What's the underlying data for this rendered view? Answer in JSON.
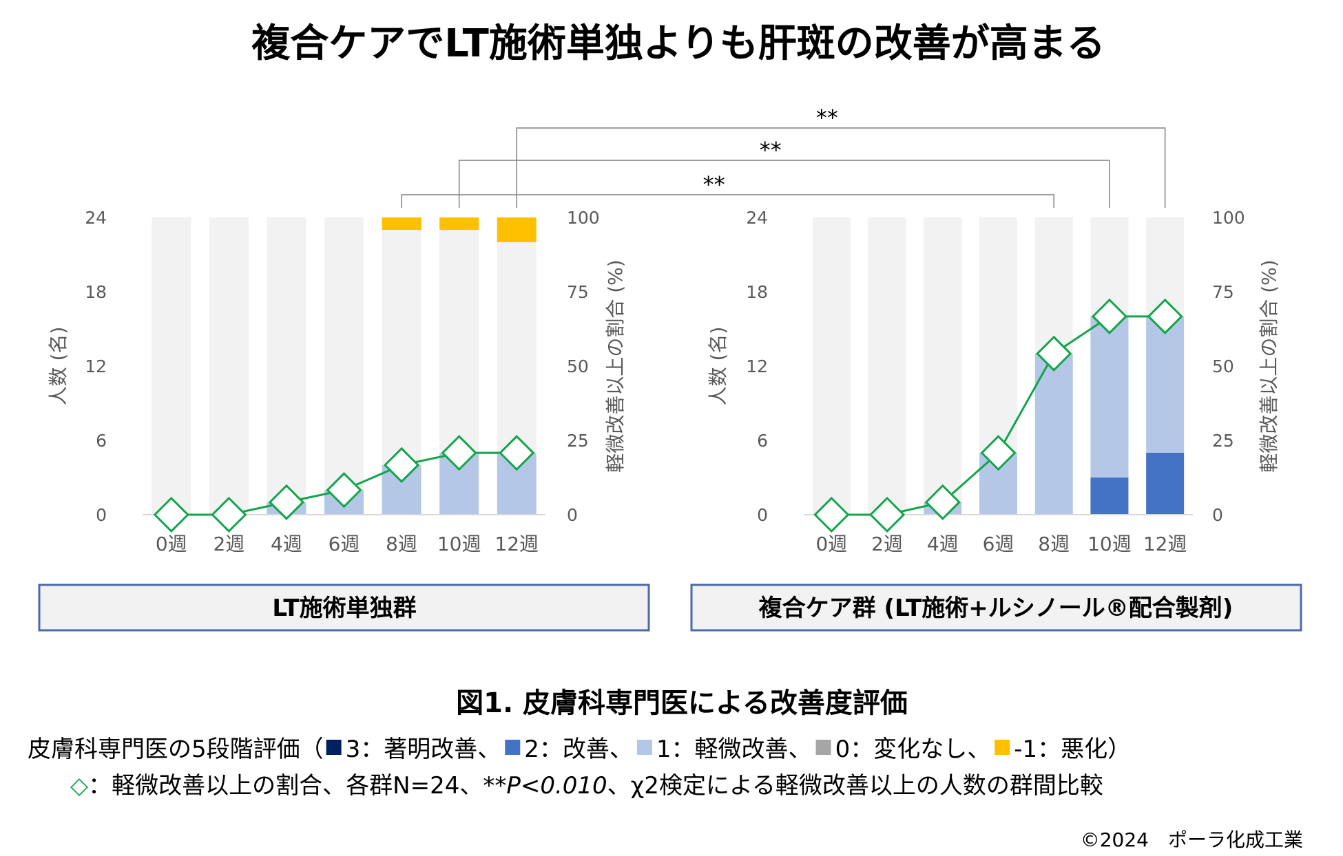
{
  "title": "複合ケアでLT施術単独よりも肝斑の改善が高まる",
  "colors": {
    "level_3": "#002060",
    "level_2": "#4472C4",
    "level_1": "#B4C7E7",
    "level_0": "#F2F2F2",
    "level_neg1": "#FFC000",
    "line": "#13A54A",
    "group_box_border": "#4A6AA8",
    "group_box_fill": "#F2F2F2",
    "bracket": "#808080"
  },
  "chart_data": [
    {
      "type": "bar",
      "group_label": "LT施術単独群",
      "categories": [
        "0週",
        "2週",
        "4週",
        "6週",
        "8週",
        "10週",
        "12週"
      ],
      "ylabel": "人数 (名)",
      "y2label": "軽微改善以上の割合 (%)",
      "ylim": [
        0,
        24
      ],
      "y_ticks": [
        "0",
        "6",
        "12",
        "18",
        "24"
      ],
      "y2lim": [
        0,
        100
      ],
      "y2_ticks": [
        "0",
        "25",
        "50",
        "75",
        "100"
      ],
      "series": [
        {
          "name": "3：著明改善",
          "color_key": "level_3",
          "values": [
            0,
            0,
            0,
            0,
            0,
            0,
            0
          ]
        },
        {
          "name": "2：改善",
          "color_key": "level_2",
          "values": [
            0,
            0,
            0,
            0,
            0,
            0,
            0
          ]
        },
        {
          "name": "1：軽微改善",
          "color_key": "level_1",
          "values": [
            0,
            0,
            1,
            2,
            4,
            5,
            5
          ]
        },
        {
          "name": "0：変化なし",
          "color_key": "level_0",
          "values": [
            24,
            24,
            23,
            22,
            19,
            18,
            17
          ]
        },
        {
          "name": "-1：悪化",
          "color_key": "level_neg1",
          "values": [
            0,
            0,
            0,
            0,
            1,
            1,
            2
          ]
        }
      ],
      "line": {
        "name": "軽微改善以上の割合",
        "values": [
          0,
          0,
          4.2,
          8.3,
          16.7,
          20.8,
          20.8
        ]
      }
    },
    {
      "type": "bar",
      "group_label": "複合ケア群 (LT施術+ルシノール®配合製剤)",
      "categories": [
        "0週",
        "2週",
        "4週",
        "6週",
        "8週",
        "10週",
        "12週"
      ],
      "ylabel": "人数 (名)",
      "y2label": "軽微改善以上の割合 (%)",
      "ylim": [
        0,
        24
      ],
      "y_ticks": [
        "0",
        "6",
        "12",
        "18",
        "24"
      ],
      "y2lim": [
        0,
        100
      ],
      "y2_ticks": [
        "0",
        "25",
        "50",
        "75",
        "100"
      ],
      "series": [
        {
          "name": "3：著明改善",
          "color_key": "level_3",
          "values": [
            0,
            0,
            0,
            0,
            0,
            0,
            0
          ]
        },
        {
          "name": "2：改善",
          "color_key": "level_2",
          "values": [
            0,
            0,
            0,
            0,
            0,
            3,
            5
          ]
        },
        {
          "name": "1：軽微改善",
          "color_key": "level_1",
          "values": [
            0,
            0,
            1,
            5,
            13,
            13,
            11
          ]
        },
        {
          "name": "0：変化なし",
          "color_key": "level_0",
          "values": [
            24,
            24,
            23,
            19,
            11,
            8,
            8
          ]
        },
        {
          "name": "-1：悪化",
          "color_key": "level_neg1",
          "values": [
            0,
            0,
            0,
            0,
            0,
            0,
            0
          ]
        }
      ],
      "line": {
        "name": "軽微改善以上の割合",
        "values": [
          0,
          0,
          4.2,
          20.8,
          54.2,
          66.7,
          66.7
        ]
      }
    }
  ],
  "significance": [
    {
      "label": "**",
      "week": "8週"
    },
    {
      "label": "**",
      "week": "10週"
    },
    {
      "label": "**",
      "week": "12週"
    }
  ],
  "figure_caption": "図1. 皮膚科専門医による改善度評価",
  "legend": {
    "intro": "皮膚科専門医の5段階評価（",
    "items": [
      {
        "label": "3：著明改善、",
        "color_key": "level_3"
      },
      {
        "label": "2：改善、",
        "color_key": "level_2"
      },
      {
        "label": "1：軽微改善、",
        "color_key": "level_1"
      },
      {
        "label": "0：変化なし、",
        "color_key": "level_0_legend"
      },
      {
        "label": "-1：悪化）",
        "color_key": "level_neg1"
      }
    ],
    "level_0_legend_color": "#A6A6A6",
    "diamond_symbol": "◇",
    "note_pre": "：軽微改善以上の割合、各群N=24、",
    "note_p": "**P<0.010",
    "note_post": "、χ2検定による軽微改善以上の人数の群間比較"
  },
  "copyright": "©2024　ポーラ化成工業"
}
